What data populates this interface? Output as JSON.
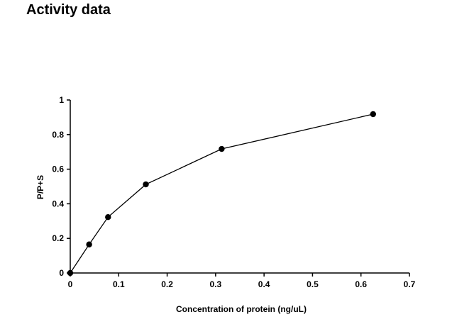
{
  "page": {
    "title": "Activity data"
  },
  "chart_data": {
    "type": "line",
    "title": "",
    "xlabel": "Concentration of protein (ng/uL)",
    "ylabel": "P/P+S",
    "xlim": [
      0,
      0.7
    ],
    "ylim": [
      0,
      1
    ],
    "x_ticks": [
      0,
      0.1,
      0.2,
      0.3,
      0.4,
      0.5,
      0.6,
      0.7
    ],
    "y_ticks": [
      0,
      0.2,
      0.4,
      0.6,
      0.8,
      1
    ],
    "x_tick_labels": [
      "0",
      "0.1",
      "0.2",
      "0.3",
      "0.4",
      "0.5",
      "0.6",
      "0.7"
    ],
    "y_tick_labels": [
      "0",
      "0.2",
      "0.4",
      "0.6",
      "0.8",
      "1"
    ],
    "grid": false,
    "legend": "none",
    "series": [
      {
        "x": [
          0,
          0.039,
          0.078,
          0.156,
          0.3125,
          0.625
        ],
        "y": [
          0,
          0.165,
          0.323,
          0.512,
          0.717,
          0.918
        ],
        "color": "#000000",
        "marker": "circle"
      }
    ]
  }
}
